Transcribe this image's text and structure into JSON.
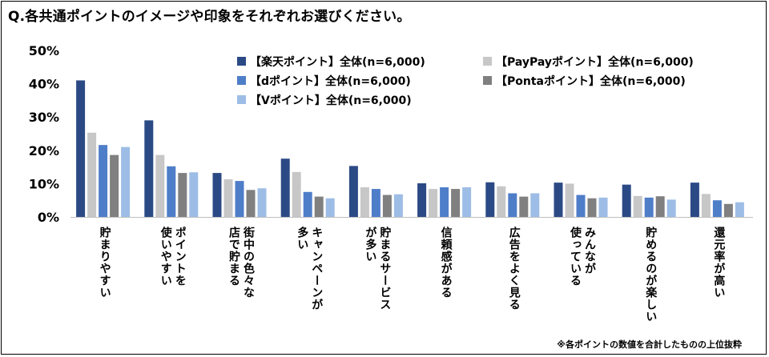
{
  "title": "Q.各共通ポイントのイメージや印象をそれぞれお選びください。",
  "footnote": "※各ポイントの数値を合計したものの上位抜粋",
  "colors": {
    "rakuten": "#2b4a85",
    "paypay": "#c7c7c7",
    "d": "#4f7ec9",
    "ponta": "#808080",
    "v": "#9dbde6"
  },
  "chart_data": {
    "type": "bar",
    "title": "",
    "xlabel": "",
    "ylabel": "",
    "ylim": [
      0,
      50
    ],
    "yticks": [
      "0%",
      "10%",
      "20%",
      "30%",
      "40%",
      "50%"
    ],
    "grid": false,
    "legend_position": "top",
    "categories": [
      "貯まりやすい",
      "ポイントを\n使いやすい",
      "街中の色々な\n店で貯まる",
      "キャンペーンが\n多い",
      "貯まるサービス\nが多い",
      "信頼感がある",
      "広告をよく見る",
      "みんなが\n使っている",
      "貯めるのが楽しい",
      "還元率が高い"
    ],
    "series": [
      {
        "name": "【楽天ポイント】全体(n=6,000)",
        "color": "#2b4a85",
        "values": [
          41.0,
          29.0,
          13.2,
          17.5,
          15.3,
          10.1,
          10.4,
          10.3,
          9.7,
          10.3
        ]
      },
      {
        "name": "【PayPayポイント】全体(n=6,000)",
        "color": "#c7c7c7",
        "values": [
          25.3,
          18.6,
          11.3,
          13.5,
          8.9,
          8.4,
          9.2,
          10.0,
          6.3,
          6.9
        ]
      },
      {
        "name": "【dポイント】全体(n=6,000)",
        "color": "#4f7ec9",
        "values": [
          21.6,
          15.2,
          10.8,
          7.5,
          8.4,
          8.9,
          7.1,
          6.6,
          5.8,
          5.0
        ]
      },
      {
        "name": "【Pontaポイント】全体(n=6,000)",
        "color": "#808080",
        "values": [
          18.6,
          13.2,
          8.1,
          6.1,
          6.6,
          8.4,
          6.1,
          5.6,
          6.2,
          3.9
        ]
      },
      {
        "name": "【Vポイント】全体(n=6,000)",
        "color": "#9dbde6",
        "values": [
          21.0,
          13.4,
          8.6,
          5.6,
          6.8,
          8.9,
          7.1,
          5.8,
          5.2,
          4.4
        ]
      }
    ]
  }
}
